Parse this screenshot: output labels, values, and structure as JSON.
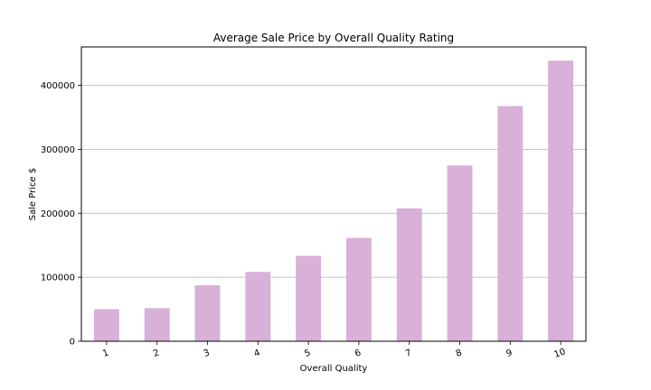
{
  "chart_data": {
    "type": "bar",
    "title": "Average Sale Price by Overall Quality Rating",
    "xlabel": "Overall Quality",
    "ylabel": "Sale Price $",
    "categories": [
      "1",
      "2",
      "3",
      "4",
      "5",
      "6",
      "7",
      "8",
      "9",
      "10"
    ],
    "values": [
      50150,
      51770,
      87473,
      108421,
      133523,
      161603,
      207716,
      274736,
      367513,
      438588
    ],
    "ylim": [
      0,
      460000
    ],
    "yticks": [
      0,
      100000,
      200000,
      300000,
      400000
    ],
    "ytick_labels": [
      "0",
      "100000",
      "200000",
      "300000",
      "400000"
    ],
    "grid": "horizontal",
    "bar_color": "#d8b0d8",
    "grid_color": "#b0b0b0"
  }
}
